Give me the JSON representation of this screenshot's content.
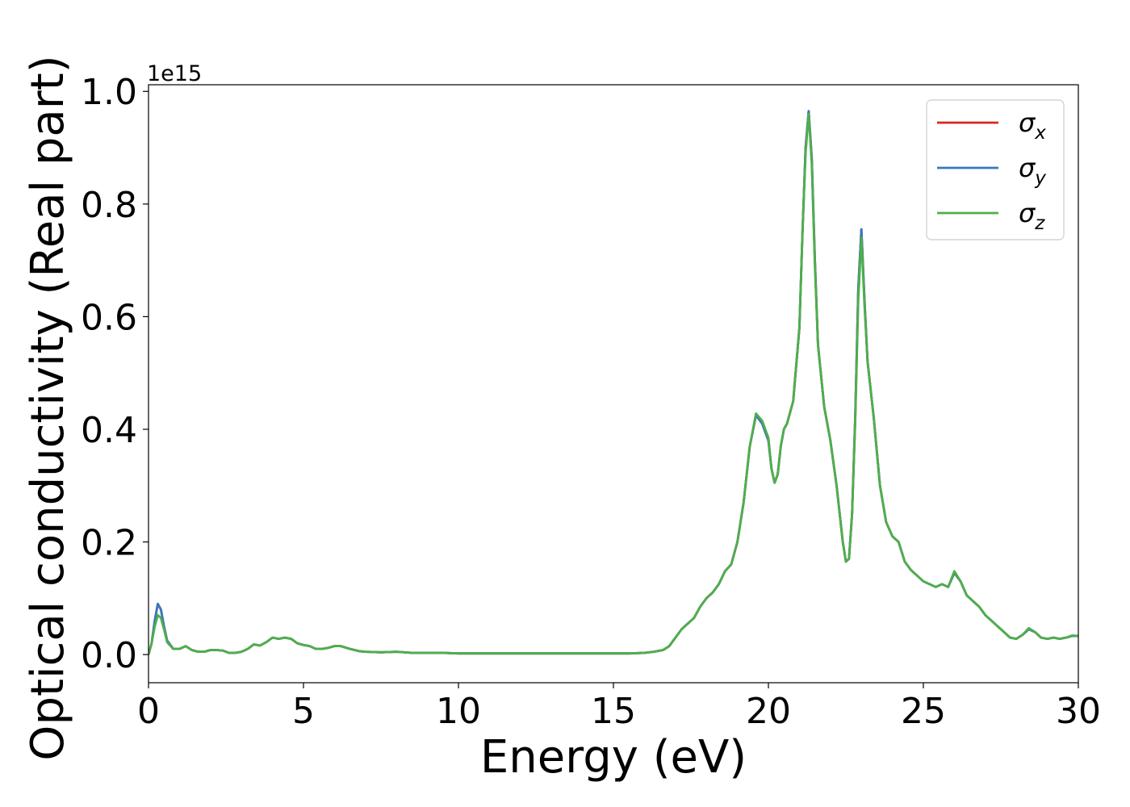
{
  "chart_data": {
    "type": "line",
    "title": "",
    "xlabel": "Energy (eV)",
    "ylabel": "Optical conductivity (Real part)",
    "y_offset_label": "1e15",
    "xlim": [
      0,
      30
    ],
    "ylim": [
      -0.05,
      1.0118
    ],
    "xticks": [
      0,
      5,
      10,
      15,
      20,
      25,
      30
    ],
    "xtick_labels": [
      "0",
      "5",
      "10",
      "15",
      "20",
      "25",
      "30"
    ],
    "yticks": [
      0.0,
      0.2,
      0.4,
      0.6,
      0.8,
      1.0
    ],
    "ytick_labels": [
      "0.0",
      "0.2",
      "0.4",
      "0.6",
      "0.8",
      "1.0"
    ],
    "grid": false,
    "legend_position": "top-right",
    "x": [
      0,
      0.1,
      0.2,
      0.3,
      0.4,
      0.5,
      0.6,
      0.8,
      1.0,
      1.2,
      1.4,
      1.6,
      1.8,
      2.0,
      2.2,
      2.4,
      2.6,
      2.8,
      3.0,
      3.2,
      3.4,
      3.6,
      3.8,
      4.0,
      4.2,
      4.4,
      4.6,
      4.8,
      5.0,
      5.2,
      5.4,
      5.6,
      5.8,
      6.0,
      6.2,
      6.5,
      6.8,
      7.0,
      7.5,
      8.0,
      8.5,
      9.0,
      9.5,
      10.0,
      11.0,
      12.0,
      13.0,
      14.0,
      15.0,
      15.5,
      16.0,
      16.3,
      16.6,
      16.8,
      17.0,
      17.2,
      17.4,
      17.6,
      17.8,
      18.0,
      18.2,
      18.4,
      18.6,
      18.8,
      19.0,
      19.2,
      19.4,
      19.6,
      19.8,
      20.0,
      20.1,
      20.2,
      20.3,
      20.4,
      20.5,
      20.6,
      20.8,
      21.0,
      21.1,
      21.2,
      21.3,
      21.4,
      21.5,
      21.6,
      21.8,
      22.0,
      22.2,
      22.4,
      22.5,
      22.6,
      22.7,
      22.8,
      22.9,
      23.0,
      23.1,
      23.2,
      23.4,
      23.6,
      23.8,
      24.0,
      24.2,
      24.4,
      24.6,
      24.8,
      25.0,
      25.2,
      25.4,
      25.6,
      25.8,
      26.0,
      26.2,
      26.4,
      26.6,
      26.8,
      27.0,
      27.2,
      27.4,
      27.6,
      27.8,
      28.0,
      28.2,
      28.4,
      28.6,
      28.8,
      29.0,
      29.2,
      29.4,
      29.6,
      29.8,
      30.0
    ],
    "series": [
      {
        "name": "σx",
        "color": "#d62728",
        "values": [
          0.0,
          0.02,
          0.06,
          0.09,
          0.08,
          0.05,
          0.025,
          0.01,
          0.01,
          0.015,
          0.008,
          0.005,
          0.005,
          0.008,
          0.008,
          0.007,
          0.003,
          0.003,
          0.005,
          0.01,
          0.018,
          0.016,
          0.022,
          0.03,
          0.028,
          0.03,
          0.028,
          0.02,
          0.017,
          0.015,
          0.01,
          0.01,
          0.012,
          0.015,
          0.015,
          0.01,
          0.006,
          0.005,
          0.004,
          0.005,
          0.003,
          0.003,
          0.003,
          0.002,
          0.002,
          0.002,
          0.002,
          0.002,
          0.002,
          0.002,
          0.003,
          0.005,
          0.008,
          0.015,
          0.03,
          0.045,
          0.055,
          0.065,
          0.085,
          0.1,
          0.11,
          0.125,
          0.148,
          0.16,
          0.2,
          0.27,
          0.37,
          0.425,
          0.41,
          0.38,
          0.33,
          0.305,
          0.32,
          0.37,
          0.4,
          0.41,
          0.45,
          0.58,
          0.75,
          0.9,
          0.965,
          0.88,
          0.7,
          0.55,
          0.44,
          0.38,
          0.3,
          0.2,
          0.165,
          0.17,
          0.25,
          0.42,
          0.65,
          0.755,
          0.63,
          0.52,
          0.42,
          0.3,
          0.235,
          0.21,
          0.2,
          0.165,
          0.15,
          0.14,
          0.13,
          0.125,
          0.12,
          0.125,
          0.12,
          0.145,
          0.13,
          0.105,
          0.095,
          0.085,
          0.07,
          0.06,
          0.05,
          0.04,
          0.03,
          0.028,
          0.035,
          0.045,
          0.04,
          0.03,
          0.028,
          0.03,
          0.028,
          0.03,
          0.033,
          0.033
        ]
      },
      {
        "name": "σy",
        "color": "#3778bf",
        "values": [
          0.0,
          0.02,
          0.06,
          0.09,
          0.08,
          0.05,
          0.025,
          0.01,
          0.01,
          0.015,
          0.008,
          0.005,
          0.005,
          0.008,
          0.008,
          0.007,
          0.003,
          0.003,
          0.005,
          0.01,
          0.018,
          0.016,
          0.022,
          0.03,
          0.028,
          0.03,
          0.028,
          0.02,
          0.017,
          0.015,
          0.01,
          0.01,
          0.012,
          0.015,
          0.015,
          0.01,
          0.006,
          0.005,
          0.004,
          0.005,
          0.003,
          0.003,
          0.003,
          0.002,
          0.002,
          0.002,
          0.002,
          0.002,
          0.002,
          0.002,
          0.003,
          0.005,
          0.008,
          0.015,
          0.03,
          0.045,
          0.055,
          0.065,
          0.085,
          0.1,
          0.11,
          0.125,
          0.148,
          0.16,
          0.2,
          0.27,
          0.37,
          0.425,
          0.41,
          0.38,
          0.33,
          0.305,
          0.32,
          0.37,
          0.4,
          0.41,
          0.45,
          0.58,
          0.75,
          0.9,
          0.965,
          0.88,
          0.7,
          0.55,
          0.44,
          0.38,
          0.3,
          0.2,
          0.165,
          0.17,
          0.25,
          0.42,
          0.65,
          0.755,
          0.63,
          0.52,
          0.42,
          0.3,
          0.235,
          0.21,
          0.2,
          0.165,
          0.15,
          0.14,
          0.13,
          0.125,
          0.12,
          0.125,
          0.12,
          0.145,
          0.13,
          0.105,
          0.095,
          0.085,
          0.07,
          0.06,
          0.05,
          0.04,
          0.03,
          0.028,
          0.035,
          0.045,
          0.04,
          0.03,
          0.028,
          0.03,
          0.028,
          0.03,
          0.033,
          0.033
        ]
      },
      {
        "name": "σz",
        "color": "#4daf4a",
        "values": [
          0.0,
          0.02,
          0.05,
          0.07,
          0.065,
          0.045,
          0.022,
          0.01,
          0.01,
          0.015,
          0.008,
          0.005,
          0.005,
          0.008,
          0.008,
          0.007,
          0.003,
          0.003,
          0.005,
          0.01,
          0.018,
          0.016,
          0.022,
          0.03,
          0.028,
          0.03,
          0.028,
          0.02,
          0.017,
          0.015,
          0.01,
          0.01,
          0.012,
          0.015,
          0.015,
          0.01,
          0.006,
          0.005,
          0.004,
          0.005,
          0.003,
          0.003,
          0.003,
          0.002,
          0.002,
          0.002,
          0.002,
          0.002,
          0.002,
          0.002,
          0.003,
          0.005,
          0.008,
          0.015,
          0.03,
          0.045,
          0.055,
          0.065,
          0.085,
          0.1,
          0.11,
          0.125,
          0.148,
          0.16,
          0.2,
          0.27,
          0.37,
          0.428,
          0.415,
          0.385,
          0.33,
          0.305,
          0.32,
          0.37,
          0.4,
          0.41,
          0.45,
          0.58,
          0.75,
          0.89,
          0.96,
          0.87,
          0.69,
          0.55,
          0.44,
          0.38,
          0.3,
          0.2,
          0.165,
          0.17,
          0.25,
          0.41,
          0.63,
          0.74,
          0.62,
          0.52,
          0.42,
          0.3,
          0.235,
          0.21,
          0.2,
          0.165,
          0.15,
          0.14,
          0.13,
          0.125,
          0.12,
          0.125,
          0.12,
          0.148,
          0.13,
          0.105,
          0.095,
          0.085,
          0.07,
          0.06,
          0.05,
          0.04,
          0.03,
          0.028,
          0.035,
          0.047,
          0.04,
          0.03,
          0.028,
          0.03,
          0.028,
          0.03,
          0.034,
          0.033
        ]
      }
    ]
  }
}
